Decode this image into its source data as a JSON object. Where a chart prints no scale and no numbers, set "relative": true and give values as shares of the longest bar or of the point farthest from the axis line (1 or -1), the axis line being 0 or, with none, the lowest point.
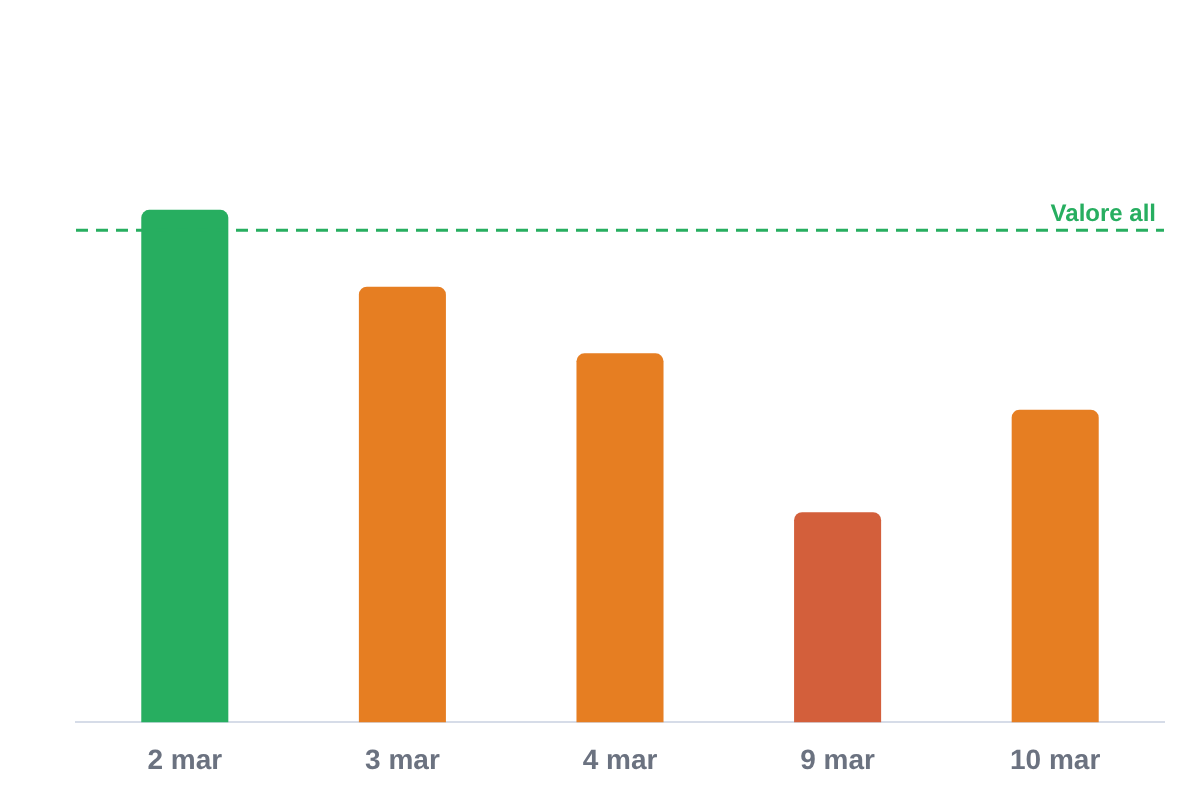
{
  "chart_data": {
    "type": "bar",
    "relative": true,
    "categories": [
      "2 mar",
      "3 mar",
      "4 mar",
      "9 mar",
      "10 mar"
    ],
    "values": [
      1,
      0.85,
      0.72,
      0.41,
      0.61
    ],
    "colors": [
      "#27ae60",
      "#e67e22",
      "#e67e22",
      "#d35f3b",
      "#e67e22"
    ],
    "ref_lines": [
      {
        "axis": "y",
        "value": 0.96,
        "label": "Valore all",
        "color": "#27ae60",
        "line_style": "dashed"
      }
    ],
    "legend": false
  }
}
